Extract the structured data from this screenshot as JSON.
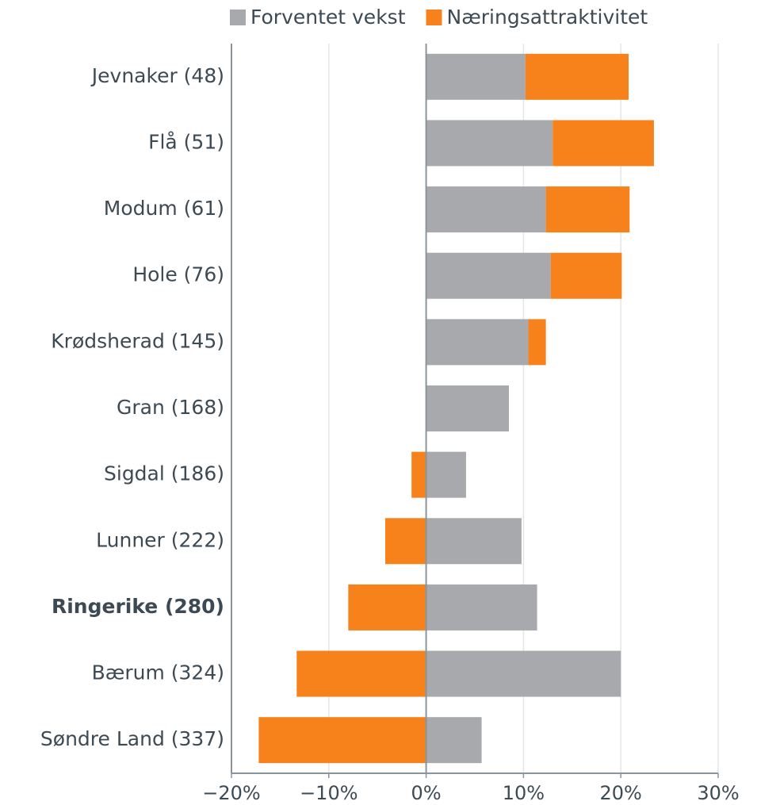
{
  "chart_data": {
    "type": "bar",
    "orientation": "horizontal",
    "stacked": true,
    "categories": [
      "Jevnaker (48)",
      "Flå (51)",
      "Modum (61)",
      "Hole (76)",
      "Krødsherad (145)",
      "Gran (168)",
      "Sigdal (186)",
      "Lunner (222)",
      "Ringerike (280)",
      "Bærum (324)",
      "Søndre Land (337)"
    ],
    "highlight_index": 8,
    "series": [
      {
        "name": "Forventet vekst",
        "color": "#a7a9ac",
        "values": [
          10.2,
          13.0,
          12.3,
          12.8,
          10.5,
          8.5,
          4.1,
          9.8,
          11.4,
          20.0,
          5.7
        ]
      },
      {
        "name": "Næringsattraktivitet",
        "color": "#f7821b",
        "values": [
          10.6,
          10.4,
          8.6,
          7.3,
          1.8,
          0,
          -1.5,
          -4.2,
          -8.0,
          -13.3,
          -17.2
        ]
      }
    ],
    "xlim": [
      -20,
      30
    ],
    "xticks": [
      {
        "value": -20,
        "label": "−20%"
      },
      {
        "value": -10,
        "label": "−10%"
      },
      {
        "value": 0,
        "label": "0%"
      },
      {
        "value": 10,
        "label": "10%"
      },
      {
        "value": 20,
        "label": "20%"
      },
      {
        "value": 30,
        "label": "30%"
      }
    ],
    "grid": true,
    "legend": "top"
  }
}
